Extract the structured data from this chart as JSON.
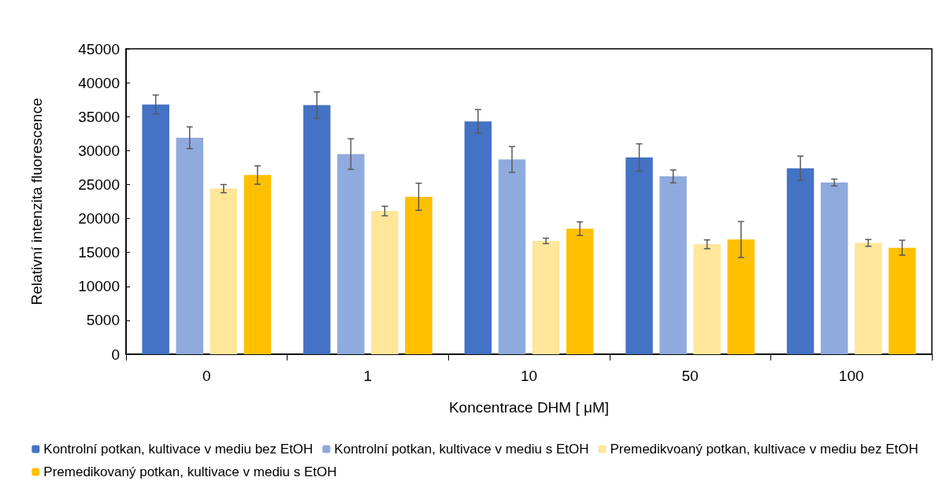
{
  "chart_data": {
    "type": "bar",
    "xlabel": "Koncentrace DHM [ μM]",
    "ylabel": "Relativní intenzita fluorescence",
    "categories": [
      "0",
      "1",
      "10",
      "50",
      "100"
    ],
    "ylim": [
      0,
      45000
    ],
    "yticks": [
      0,
      5000,
      10000,
      15000,
      20000,
      25000,
      30000,
      35000,
      40000,
      45000
    ],
    "grid": false,
    "legend": "bottom",
    "series": [
      {
        "name": "Kontrolní potkan, kultivace v mediu bez EtOH",
        "color": "#4472c4",
        "values": [
          36800,
          36700,
          34300,
          29000,
          27400
        ],
        "errors": [
          1400,
          1950,
          1750,
          2000,
          1800
        ]
      },
      {
        "name": "Kontrolní potkan, kultivace v mediu s EtOH",
        "color": "#8faadc",
        "values": [
          31900,
          29500,
          28700,
          26200,
          25300
        ],
        "errors": [
          1600,
          2250,
          1900,
          950,
          500
        ]
      },
      {
        "name": "Premedikvoaný potkan, kultivace v mediu bez EtOH",
        "color": "#ffe699",
        "values": [
          24400,
          21100,
          16700,
          16200,
          16400
        ],
        "errors": [
          600,
          700,
          400,
          650,
          500
        ]
      },
      {
        "name": "Premedikovaný potkan, kultivace v mediu s EtOH",
        "color": "#ffc000",
        "values": [
          26400,
          23200,
          18500,
          16900,
          15700
        ],
        "errors": [
          1350,
          2000,
          1000,
          2650,
          1100
        ]
      }
    ]
  }
}
